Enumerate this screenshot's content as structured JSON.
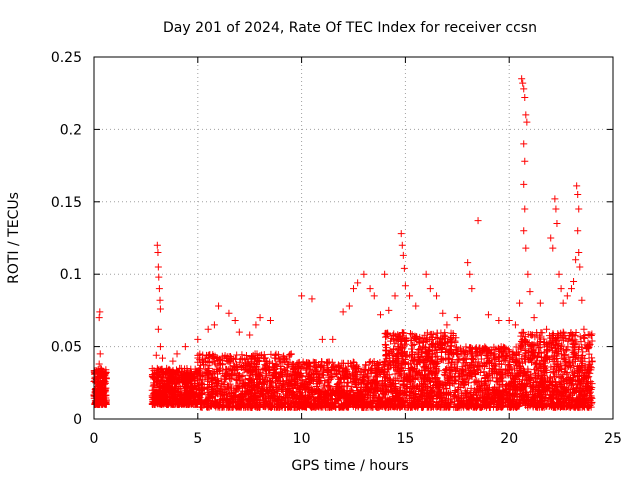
{
  "chart_data": {
    "type": "scatter",
    "title": "Day 201 of 2024, Rate Of TEC Index for receiver ccsn",
    "xlabel": "GPS time / hours",
    "ylabel": "ROTI / TECUs",
    "xlim": [
      0,
      25
    ],
    "ylim": [
      0,
      0.25
    ],
    "xticks": [
      0,
      5,
      10,
      15,
      20,
      25
    ],
    "xtick_labels": [
      "0",
      "5",
      "10",
      "15",
      "20",
      "25"
    ],
    "yticks": [
      0,
      0.05,
      0.1,
      0.15,
      0.2,
      0.25
    ],
    "ytick_labels": [
      "0",
      "0.05",
      "0.1",
      "0.15",
      "0.2",
      "0.25"
    ],
    "grid": true,
    "marker": "plus",
    "color": "#ff0000",
    "series": [
      {
        "points": [
          [
            0.05,
            0.018
          ],
          [
            0.1,
            0.025
          ],
          [
            0.15,
            0.032
          ],
          [
            0.2,
            0.022
          ],
          [
            0.25,
            0.038
          ],
          [
            0.3,
            0.045
          ],
          [
            0.25,
            0.07
          ],
          [
            0.28,
            0.074
          ],
          [
            0.35,
            0.03
          ],
          [
            0.4,
            0.028
          ],
          [
            0.45,
            0.02
          ],
          [
            0.5,
            0.024
          ],
          [
            3.0,
            0.044
          ],
          [
            3.05,
            0.12
          ],
          [
            3.08,
            0.115
          ],
          [
            3.1,
            0.105
          ],
          [
            3.12,
            0.098
          ],
          [
            3.15,
            0.09
          ],
          [
            3.18,
            0.082
          ],
          [
            3.2,
            0.076
          ],
          [
            3.1,
            0.062
          ],
          [
            3.2,
            0.05
          ],
          [
            3.3,
            0.042
          ],
          [
            3.5,
            0.035
          ],
          [
            3.8,
            0.04
          ],
          [
            4.0,
            0.045
          ],
          [
            4.4,
            0.05
          ],
          [
            5.0,
            0.055
          ],
          [
            5.5,
            0.062
          ],
          [
            5.8,
            0.065
          ],
          [
            6.0,
            0.078
          ],
          [
            6.5,
            0.073
          ],
          [
            6.8,
            0.068
          ],
          [
            7.0,
            0.06
          ],
          [
            7.5,
            0.058
          ],
          [
            7.8,
            0.065
          ],
          [
            8.0,
            0.07
          ],
          [
            8.5,
            0.068
          ],
          [
            9.0,
            0.04
          ],
          [
            9.5,
            0.045
          ],
          [
            10.0,
            0.085
          ],
          [
            10.5,
            0.083
          ],
          [
            11.0,
            0.055
          ],
          [
            11.5,
            0.055
          ],
          [
            12.0,
            0.074
          ],
          [
            12.3,
            0.078
          ],
          [
            12.5,
            0.09
          ],
          [
            12.7,
            0.094
          ],
          [
            13.0,
            0.1
          ],
          [
            13.3,
            0.09
          ],
          [
            13.5,
            0.085
          ],
          [
            13.8,
            0.072
          ],
          [
            14.0,
            0.1
          ],
          [
            14.2,
            0.075
          ],
          [
            14.5,
            0.085
          ],
          [
            14.8,
            0.128
          ],
          [
            14.85,
            0.12
          ],
          [
            14.9,
            0.113
          ],
          [
            14.95,
            0.104
          ],
          [
            15.0,
            0.092
          ],
          [
            15.2,
            0.085
          ],
          [
            15.5,
            0.078
          ],
          [
            16.0,
            0.1
          ],
          [
            16.2,
            0.09
          ],
          [
            16.5,
            0.085
          ],
          [
            16.8,
            0.073
          ],
          [
            17.0,
            0.065
          ],
          [
            17.5,
            0.07
          ],
          [
            18.0,
            0.108
          ],
          [
            18.1,
            0.1
          ],
          [
            18.2,
            0.09
          ],
          [
            18.5,
            0.137
          ],
          [
            19.0,
            0.072
          ],
          [
            19.5,
            0.068
          ],
          [
            20.0,
            0.068
          ],
          [
            20.3,
            0.065
          ],
          [
            20.5,
            0.08
          ],
          [
            20.6,
            0.235
          ],
          [
            20.65,
            0.232
          ],
          [
            20.7,
            0.228
          ],
          [
            20.75,
            0.222
          ],
          [
            20.8,
            0.21
          ],
          [
            20.85,
            0.205
          ],
          [
            20.7,
            0.19
          ],
          [
            20.75,
            0.178
          ],
          [
            20.7,
            0.162
          ],
          [
            20.75,
            0.145
          ],
          [
            20.7,
            0.13
          ],
          [
            20.8,
            0.118
          ],
          [
            20.9,
            0.1
          ],
          [
            21.0,
            0.088
          ],
          [
            21.2,
            0.07
          ],
          [
            21.5,
            0.08
          ],
          [
            21.8,
            0.062
          ],
          [
            22.0,
            0.125
          ],
          [
            22.1,
            0.118
          ],
          [
            22.2,
            0.152
          ],
          [
            22.25,
            0.145
          ],
          [
            22.3,
            0.135
          ],
          [
            22.4,
            0.1
          ],
          [
            22.5,
            0.09
          ],
          [
            22.6,
            0.08
          ],
          [
            22.8,
            0.085
          ],
          [
            23.0,
            0.09
          ],
          [
            23.1,
            0.095
          ],
          [
            23.2,
            0.11
          ],
          [
            23.25,
            0.161
          ],
          [
            23.3,
            0.155
          ],
          [
            23.35,
            0.145
          ],
          [
            23.3,
            0.13
          ],
          [
            23.35,
            0.115
          ],
          [
            23.4,
            0.105
          ],
          [
            23.5,
            0.082
          ],
          [
            23.6,
            0.062
          ],
          [
            23.8,
            0.05
          ],
          [
            24.0,
            0.04
          ]
        ],
        "bands": [
          {
            "x": [
              0,
              0.6
            ],
            "y": [
              0.01,
              0.035
            ],
            "n": 220
          },
          {
            "x": [
              2.8,
              5.0
            ],
            "y": [
              0.01,
              0.035
            ],
            "n": 600
          },
          {
            "x": [
              5.0,
              9.5
            ],
            "y": [
              0.008,
              0.045
            ],
            "n": 900
          },
          {
            "x": [
              9.5,
              14.0
            ],
            "y": [
              0.008,
              0.04
            ],
            "n": 900
          },
          {
            "x": [
              14.0,
              17.5
            ],
            "y": [
              0.008,
              0.06
            ],
            "n": 900
          },
          {
            "x": [
              17.5,
              20.5
            ],
            "y": [
              0.008,
              0.05
            ],
            "n": 700
          },
          {
            "x": [
              20.5,
              24.0
            ],
            "y": [
              0.008,
              0.06
            ],
            "n": 900
          }
        ]
      }
    ]
  }
}
